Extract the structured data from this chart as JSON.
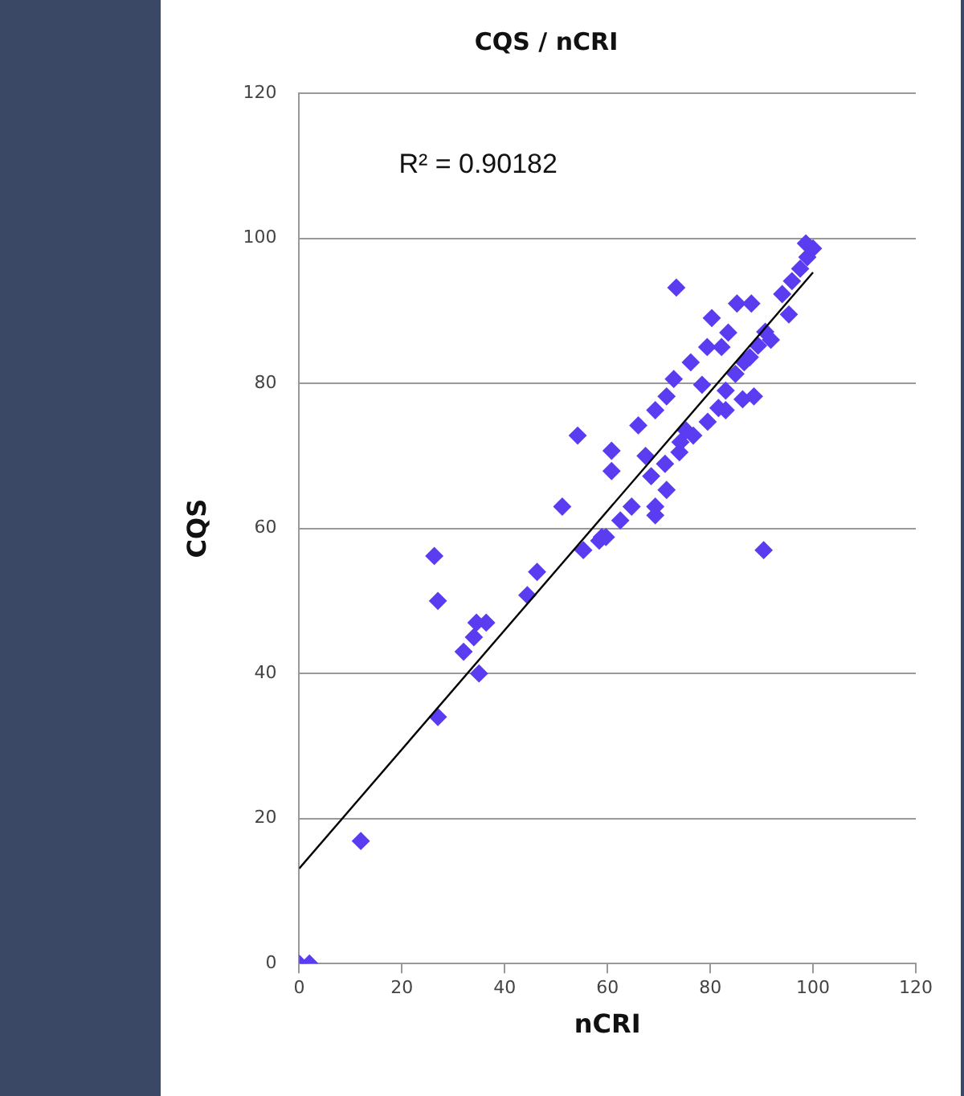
{
  "chart_data": {
    "type": "scatter",
    "title": "CQS / nCRI",
    "xlabel": "nCRI",
    "ylabel": "CQS",
    "annotations": [
      "R² = 0.90182"
    ],
    "xlim": [
      0,
      120
    ],
    "xticks": [
      0,
      20,
      40,
      60,
      80,
      100,
      120
    ],
    "ylim": [
      0,
      120
    ],
    "yticks": [
      0,
      20,
      40,
      60,
      80,
      100,
      120
    ],
    "grid": "y",
    "legend": false,
    "marker": "diamond",
    "series": [
      {
        "color": "#5b3cf0",
        "x": [
          0,
          2,
          12,
          26.3,
          27,
          27,
          32,
          34,
          34.5,
          36.4,
          35,
          44.4,
          46.3,
          51.2,
          54.2,
          55.3,
          58.4,
          59.7,
          60.8,
          60.8,
          73.4,
          90.4,
          85.2,
          88,
          80.3,
          83.5,
          79.4,
          82.2,
          76.2,
          72.9,
          71.5,
          69.3,
          66,
          67.4,
          68.5,
          71.2,
          74,
          76.7,
          79.5,
          81.6,
          83,
          78.4,
          84.9,
          86.6,
          88.5,
          86.3,
          83,
          91.8,
          95.3,
          94,
          95.9,
          97.5,
          98.9,
          100,
          98.6,
          90.7,
          89.3,
          87.7,
          71.5,
          69.3,
          69.3,
          64.7,
          62.5,
          58.9,
          74.2,
          75.3
        ],
        "values": [
          0,
          0,
          16.9,
          56.2,
          50,
          34,
          43,
          45,
          47,
          47,
          40,
          50.8,
          54,
          63,
          72.8,
          57,
          58.3,
          58.8,
          70.7,
          67.9,
          93.2,
          57,
          91,
          91,
          89,
          87,
          85,
          85,
          82.9,
          80.6,
          78.2,
          76.3,
          74.2,
          70,
          67.2,
          68.9,
          70.5,
          72.8,
          74.7,
          76.6,
          79,
          79.8,
          81.3,
          82.9,
          78.2,
          77.8,
          76.3,
          86,
          89.5,
          92.3,
          94.1,
          95.8,
          97.4,
          98.6,
          99.3,
          87.1,
          85.2,
          83.6,
          65.3,
          63,
          61.8,
          63,
          61.1,
          58.8,
          71.9,
          73.5
        ]
      },
      {
        "type": "line",
        "color": "#000000",
        "marker": "none",
        "x": [
          0,
          100
        ],
        "values": [
          13.1,
          95.3
        ]
      }
    ]
  }
}
